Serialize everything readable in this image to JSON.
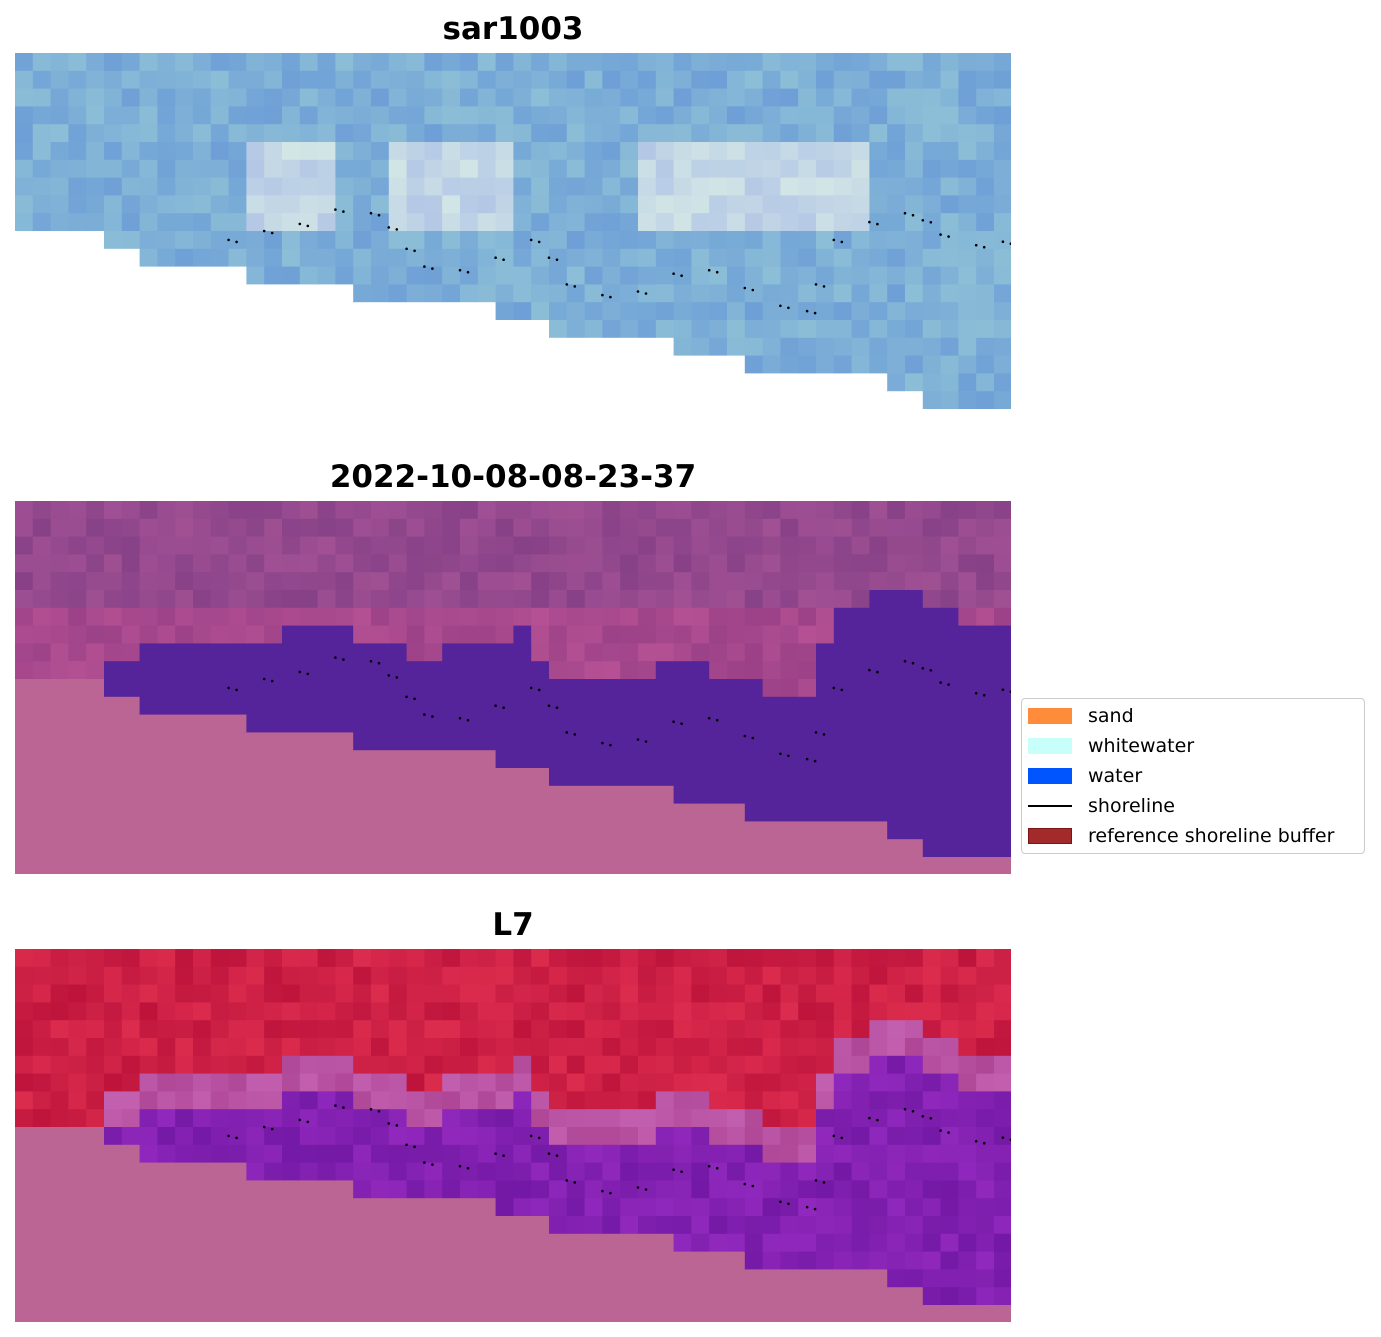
{
  "panels": [
    {
      "title": "sar1003",
      "palette": "sar"
    },
    {
      "title": "2022-10-08-08-23-37",
      "palette": "classified"
    },
    {
      "title": "L7",
      "palette": "ndwi"
    }
  ],
  "legend": {
    "items": [
      {
        "label": "sand",
        "kind": "box",
        "color": "#ff8c3a"
      },
      {
        "label": "whitewater",
        "kind": "box",
        "color": "#c8fffa"
      },
      {
        "label": "water",
        "kind": "box",
        "color": "#0055ff"
      },
      {
        "label": "shoreline",
        "kind": "line",
        "color": "#000000"
      },
      {
        "label": "reference shoreline buffer",
        "kind": "box",
        "color": "#a32a2a",
        "edge": "#7a1515"
      }
    ]
  },
  "colors": {
    "background_mask": "#bb6594",
    "water_class": "#55249a",
    "sar_base": "#7aa8d8",
    "land_purple": "#8e4a8c",
    "ndwi_land": "#c41f4a",
    "ndwi_water": "#7a1fa0"
  }
}
